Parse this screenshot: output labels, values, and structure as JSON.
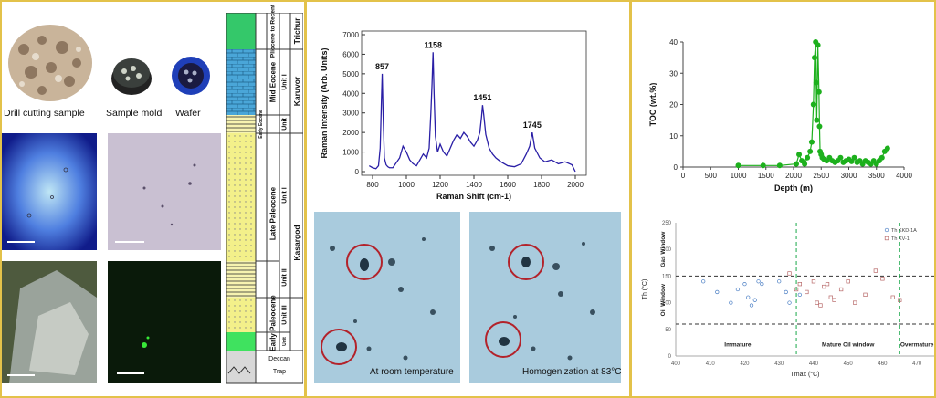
{
  "panel1": {
    "labels": {
      "drill": "Drill cutting sample",
      "mold": "Sample mold",
      "wafer": "Wafer"
    },
    "column": {
      "series": [
        {
          "name": "Trichur",
          "stages": [
            {
              "name": "Pliocene to Recent"
            }
          ]
        },
        {
          "name": "Karuvor",
          "stages": [
            {
              "name": "Mid Eocene",
              "units": [
                "Unit I"
              ]
            },
            {
              "name": "Early Eocene",
              "units": [
                "Unit"
              ]
            }
          ]
        },
        {
          "name": "Kasargod",
          "stages": [
            {
              "name": "Late Paleocene",
              "units": [
                "Unit I",
                "Unit II"
              ]
            },
            {
              "name": "Early Paleocene",
              "units": [
                "Unit III",
                "Unit"
              ]
            }
          ]
        }
      ],
      "bottom": [
        "Deccan",
        "Trap"
      ]
    }
  },
  "panel2": {
    "captions": {
      "left": "At room temperature",
      "right": "Homogenization at 83°C"
    }
  },
  "chart_data": [
    {
      "type": "line",
      "xlabel": "Raman Shift (cm-1)",
      "ylabel": "Raman Intensity (Arb. Units)",
      "xlim": [
        800,
        2000
      ],
      "ylim": [
        0,
        7000
      ],
      "xticks": [
        "800",
        "1000",
        "1200",
        "1400",
        "1600",
        "1800",
        "2000"
      ],
      "yticks": [
        "0",
        "1000",
        "2000",
        "3000",
        "4000",
        "5000",
        "6000",
        "7000"
      ],
      "annotations": [
        {
          "x": 857,
          "y": 5000,
          "text": "857"
        },
        {
          "x": 1158,
          "y": 6100,
          "text": "1158"
        },
        {
          "x": 1451,
          "y": 3400,
          "text": "1451"
        },
        {
          "x": 1745,
          "y": 2000,
          "text": "1745"
        }
      ],
      "series": [
        {
          "color": "#2a1fa6",
          "x": [
            780,
            800,
            820,
            835,
            845,
            852,
            857,
            862,
            870,
            880,
            890,
            900,
            920,
            940,
            960,
            980,
            1000,
            1020,
            1040,
            1060,
            1080,
            1100,
            1120,
            1135,
            1145,
            1152,
            1158,
            1164,
            1172,
            1185,
            1200,
            1220,
            1240,
            1260,
            1280,
            1300,
            1320,
            1340,
            1360,
            1380,
            1400,
            1420,
            1435,
            1445,
            1451,
            1458,
            1470,
            1490,
            1510,
            1530,
            1560,
            1600,
            1640,
            1680,
            1710,
            1730,
            1745,
            1760,
            1790,
            1820,
            1860,
            1900,
            1940,
            1980,
            2000
          ],
          "y": [
            300,
            200,
            150,
            300,
            1200,
            3500,
            5000,
            3000,
            700,
            350,
            250,
            200,
            200,
            450,
            700,
            1300,
            1000,
            600,
            400,
            300,
            600,
            900,
            700,
            1200,
            3000,
            4500,
            6100,
            4000,
            1800,
            1000,
            1400,
            1000,
            800,
            1200,
            1600,
            1900,
            1700,
            2000,
            1800,
            1500,
            1300,
            1600,
            2000,
            2800,
            3400,
            2900,
            1900,
            1200,
            900,
            700,
            500,
            300,
            250,
            400,
            900,
            1300,
            2000,
            1200,
            700,
            500,
            600,
            400,
            500,
            350,
            0
          ]
        }
      ]
    },
    {
      "type": "scatter",
      "xlabel": "Depth (m)",
      "ylabel": "TOC (wt.%)",
      "xlim": [
        0,
        4000
      ],
      "ylim": [
        0,
        40
      ],
      "xticks": [
        "0",
        "500",
        "1000",
        "1500",
        "2000",
        "2500",
        "3000",
        "3500",
        "4000"
      ],
      "yticks": [
        "0",
        "10",
        "20",
        "30",
        "40"
      ],
      "series": [
        {
          "color": "#1db01d",
          "x": [
            1000,
            1450,
            1750,
            2050,
            2100,
            2150,
            2200,
            2250,
            2300,
            2330,
            2360,
            2380,
            2400,
            2410,
            2420,
            2440,
            2460,
            2470,
            2480,
            2500,
            2520,
            2550,
            2600,
            2650,
            2700,
            2750,
            2800,
            2850,
            2900,
            2950,
            3000,
            3050,
            3100,
            3150,
            3200,
            3250,
            3300,
            3350,
            3400,
            3450,
            3500,
            3550,
            3600,
            3650,
            3700
          ],
          "y": [
            0.5,
            0.5,
            0.5,
            1,
            4,
            2,
            1,
            3,
            5,
            8,
            20,
            35,
            40,
            27,
            15,
            39,
            24,
            13,
            5,
            4,
            3,
            2.5,
            2,
            3,
            2,
            1.5,
            2,
            3,
            1.5,
            2,
            2.5,
            1.8,
            3,
            1.5,
            2,
            1,
            2,
            1.5,
            1,
            2,
            1,
            2,
            3,
            5,
            6
          ]
        }
      ]
    },
    {
      "type": "scatter",
      "xlabel": "Tmax (°C)",
      "ylabel": "Th (°C)",
      "xlim": [
        400,
        475
      ],
      "ylim": [
        0,
        250
      ],
      "xticks": [
        "400",
        "410",
        "420",
        "430",
        "440",
        "450",
        "460",
        "470"
      ],
      "yticks": [
        "0",
        "50",
        "100",
        "150",
        "200",
        "250"
      ],
      "zones": [
        "Gas Window",
        "Oil Window",
        "Immature",
        "Mature Oil window",
        "Overmature"
      ],
      "legend": [
        "Th KKD-1A",
        "Th KV-1"
      ],
      "series": [
        {
          "name": "Th KKD-1A",
          "color": "#4a7ec4",
          "x": [
            408,
            412,
            416,
            418,
            420,
            421,
            422,
            423,
            424,
            425,
            430,
            432,
            433,
            436
          ],
          "y": [
            140,
            120,
            100,
            125,
            135,
            110,
            95,
            105,
            140,
            135,
            140,
            120,
            100,
            115
          ]
        },
        {
          "name": "Th KV-1",
          "color": "#b86a6a",
          "x": [
            433,
            435,
            436,
            438,
            440,
            441,
            442,
            443,
            444,
            445,
            446,
            448,
            450,
            452,
            455,
            458,
            460,
            463,
            465
          ],
          "y": [
            155,
            125,
            135,
            120,
            140,
            100,
            95,
            130,
            135,
            110,
            105,
            125,
            140,
            100,
            115,
            160,
            145,
            110,
            105
          ]
        }
      ]
    }
  ]
}
